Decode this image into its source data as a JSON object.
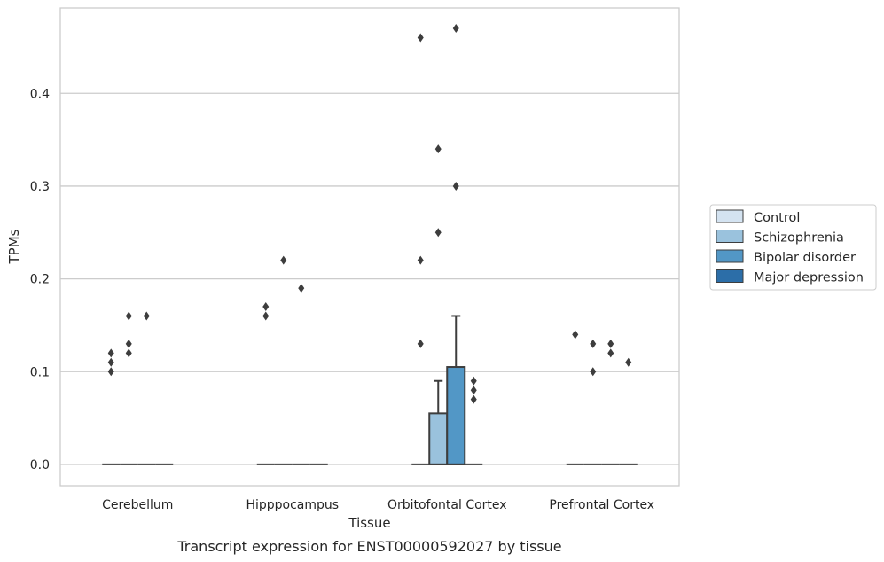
{
  "chart_data": {
    "type": "boxplot",
    "xlabel": "Tissue",
    "ylabel": "TPMs",
    "caption": "Transcript expression for ENST00000592027 by tissue",
    "categories": [
      "Cerebellum",
      "Hipppocampus",
      "Orbitofontal Cortex",
      "Prefrontal Cortex"
    ],
    "ylim": [
      -0.023,
      0.492
    ],
    "yticks": [
      0.0,
      0.1,
      0.2,
      0.3,
      0.4
    ],
    "ytick_labels": [
      "0.0",
      "0.1",
      "0.2",
      "0.3",
      "0.4"
    ],
    "grid": "horizontal",
    "legend_position": "right",
    "series": [
      {
        "name": "Control",
        "color": "#d4e3f1",
        "boxes": [
          {
            "q1": 0,
            "median": 0,
            "q3": 0,
            "whisker_low": 0,
            "whisker_high": 0,
            "outliers": [
              0.1,
              0.11,
              0.12
            ]
          },
          {
            "q1": 0,
            "median": 0,
            "q3": 0,
            "whisker_low": 0,
            "whisker_high": 0,
            "outliers": [
              0.16,
              0.17
            ]
          },
          {
            "q1": 0,
            "median": 0,
            "q3": 0,
            "whisker_low": 0,
            "whisker_high": 0,
            "outliers": [
              0.13,
              0.22,
              0.46
            ]
          },
          {
            "q1": 0,
            "median": 0,
            "q3": 0,
            "whisker_low": 0,
            "whisker_high": 0,
            "outliers": [
              0.14
            ]
          }
        ]
      },
      {
        "name": "Schizophrenia",
        "color": "#9ac2dd",
        "boxes": [
          {
            "q1": 0,
            "median": 0,
            "q3": 0,
            "whisker_low": 0,
            "whisker_high": 0,
            "outliers": [
              0.12,
              0.13,
              0.16
            ]
          },
          {
            "q1": 0,
            "median": 0,
            "q3": 0,
            "whisker_low": 0,
            "whisker_high": 0,
            "outliers": [
              0.22
            ]
          },
          {
            "q1": 0,
            "median": 0,
            "q3": 0.055,
            "whisker_low": 0,
            "whisker_high": 0.09,
            "outliers": [
              0.25,
              0.34
            ]
          },
          {
            "q1": 0,
            "median": 0,
            "q3": 0,
            "whisker_low": 0,
            "whisker_high": 0,
            "outliers": [
              0.1,
              0.13
            ]
          }
        ]
      },
      {
        "name": "Bipolar disorder",
        "color": "#5297c6",
        "boxes": [
          {
            "q1": 0,
            "median": 0,
            "q3": 0,
            "whisker_low": 0,
            "whisker_high": 0,
            "outliers": [
              0.16
            ]
          },
          {
            "q1": 0,
            "median": 0,
            "q3": 0,
            "whisker_low": 0,
            "whisker_high": 0,
            "outliers": [
              0.19
            ]
          },
          {
            "q1": 0,
            "median": 0,
            "q3": 0.105,
            "whisker_low": 0,
            "whisker_high": 0.16,
            "outliers": [
              0.3,
              0.47
            ]
          },
          {
            "q1": 0,
            "median": 0,
            "q3": 0,
            "whisker_low": 0,
            "whisker_high": 0,
            "outliers": [
              0.12,
              0.13
            ]
          }
        ]
      },
      {
        "name": "Major depression",
        "color": "#2c6ea8",
        "boxes": [
          {
            "q1": 0,
            "median": 0,
            "q3": 0,
            "whisker_low": 0,
            "whisker_high": 0,
            "outliers": []
          },
          {
            "q1": 0,
            "median": 0,
            "q3": 0,
            "whisker_low": 0,
            "whisker_high": 0,
            "outliers": []
          },
          {
            "q1": 0,
            "median": 0,
            "q3": 0,
            "whisker_low": 0,
            "whisker_high": 0,
            "outliers": [
              0.07,
              0.08,
              0.09
            ]
          },
          {
            "q1": 0,
            "median": 0,
            "q3": 0,
            "whisker_low": 0,
            "whisker_high": 0,
            "outliers": [
              0.11
            ]
          }
        ]
      }
    ]
  }
}
